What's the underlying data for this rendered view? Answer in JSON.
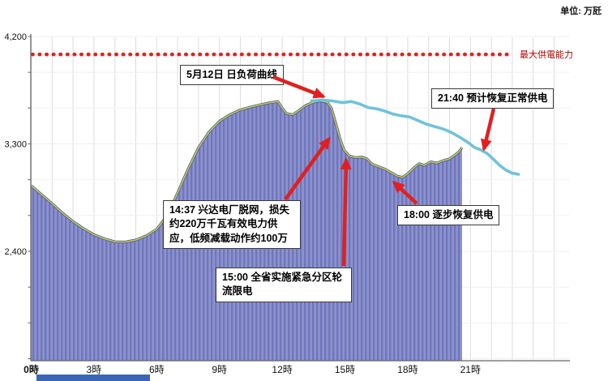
{
  "header": {
    "unit_label": "单位: 万瓩"
  },
  "chart_data": {
    "type": "area",
    "title": "5月12日 日负荷曲线",
    "unit": "万瓩",
    "x_axis": {
      "min_hour": 0,
      "max_hour": 25.5,
      "ticks": [
        {
          "hour": 0,
          "label": "0時",
          "bold": true
        },
        {
          "hour": 3,
          "label": "3時"
        },
        {
          "hour": 6,
          "label": "6時"
        },
        {
          "hour": 9,
          "label": "9時"
        },
        {
          "hour": 12,
          "label": "12時"
        },
        {
          "hour": 15,
          "label": "15時"
        },
        {
          "hour": 18,
          "label": "18時"
        },
        {
          "hour": 21,
          "label": "21時"
        }
      ]
    },
    "y_axis": {
      "min": 1500,
      "max": 4200,
      "minor_step": 300,
      "ticks": [
        {
          "value": 4200,
          "label": "4,200"
        },
        {
          "value": 3300,
          "label": "3,300"
        },
        {
          "value": 2400,
          "label": "2,400"
        }
      ]
    },
    "max_supply_line": {
      "value": 4050,
      "label": "最大供電能力",
      "color": "#e02020",
      "label_color": "#b00000"
    },
    "series": [
      {
        "name": "actual_load",
        "type": "area",
        "fill": "#8d93cb",
        "stripe": "#7076bd",
        "edge": "#3f62a8",
        "edge2": "#d9c93c",
        "points": [
          [
            0,
            2950
          ],
          [
            0.5,
            2875
          ],
          [
            1,
            2800
          ],
          [
            1.5,
            2720
          ],
          [
            2,
            2650
          ],
          [
            2.5,
            2590
          ],
          [
            3,
            2540
          ],
          [
            3.5,
            2505
          ],
          [
            4,
            2480
          ],
          [
            4.5,
            2478
          ],
          [
            5,
            2495
          ],
          [
            5.5,
            2530
          ],
          [
            6,
            2585
          ],
          [
            6.5,
            2700
          ],
          [
            7,
            2890
          ],
          [
            7.5,
            3090
          ],
          [
            8,
            3270
          ],
          [
            8.5,
            3400
          ],
          [
            9,
            3490
          ],
          [
            9.5,
            3545
          ],
          [
            10,
            3585
          ],
          [
            10.5,
            3610
          ],
          [
            11,
            3630
          ],
          [
            11.4,
            3645
          ],
          [
            11.8,
            3655
          ],
          [
            12.0,
            3600
          ],
          [
            12.2,
            3555
          ],
          [
            12.5,
            3545
          ],
          [
            12.8,
            3580
          ],
          [
            13.1,
            3620
          ],
          [
            13.5,
            3650
          ],
          [
            13.8,
            3660
          ],
          [
            14.15,
            3650
          ],
          [
            14.35,
            3600
          ],
          [
            14.55,
            3480
          ],
          [
            14.75,
            3350
          ],
          [
            14.95,
            3250
          ],
          [
            15.2,
            3200
          ],
          [
            15.5,
            3185
          ],
          [
            15.8,
            3190
          ],
          [
            16.05,
            3175
          ],
          [
            16.3,
            3130
          ],
          [
            16.6,
            3110
          ],
          [
            16.9,
            3090
          ],
          [
            17.2,
            3060
          ],
          [
            17.5,
            3030
          ],
          [
            17.75,
            3020
          ],
          [
            18.0,
            3050
          ],
          [
            18.3,
            3100
          ],
          [
            18.55,
            3135
          ],
          [
            18.8,
            3120
          ],
          [
            19.1,
            3150
          ],
          [
            19.4,
            3140
          ],
          [
            19.7,
            3160
          ],
          [
            20.0,
            3175
          ],
          [
            20.25,
            3205
          ],
          [
            20.45,
            3235
          ],
          [
            20.6,
            3270
          ]
        ]
      },
      {
        "name": "recovery_forecast",
        "type": "line",
        "color": "#6fc2dd",
        "points": [
          [
            13.4,
            3660
          ],
          [
            13.9,
            3668
          ],
          [
            14.4,
            3660
          ],
          [
            14.9,
            3645
          ],
          [
            15.3,
            3655
          ],
          [
            15.7,
            3635
          ],
          [
            16.1,
            3605
          ],
          [
            16.5,
            3595
          ],
          [
            16.9,
            3575
          ],
          [
            17.3,
            3550
          ],
          [
            17.7,
            3535
          ],
          [
            18.1,
            3525
          ],
          [
            18.5,
            3495
          ],
          [
            18.9,
            3465
          ],
          [
            19.3,
            3445
          ],
          [
            19.7,
            3425
          ],
          [
            20.1,
            3395
          ],
          [
            20.5,
            3355
          ],
          [
            20.9,
            3310
          ],
          [
            21.2,
            3270
          ],
          [
            21.5,
            3250
          ],
          [
            21.8,
            3220
          ],
          [
            22.1,
            3170
          ],
          [
            22.4,
            3120
          ],
          [
            22.7,
            3080
          ],
          [
            23.0,
            3055
          ],
          [
            23.3,
            3045
          ]
        ]
      }
    ]
  },
  "annotations": {
    "curve_label": "5月12日 日负荷曲线",
    "event_1437": "14:37  兴达电厂脱网，损失约220万千瓦有效电力供应，低频减载动作约100万",
    "event_1500": "15:00  全省实施紧急分区轮流限电",
    "event_1800": "18:00  逐步恢复供电",
    "event_2140": "21:40  预计恢复正常供电"
  }
}
